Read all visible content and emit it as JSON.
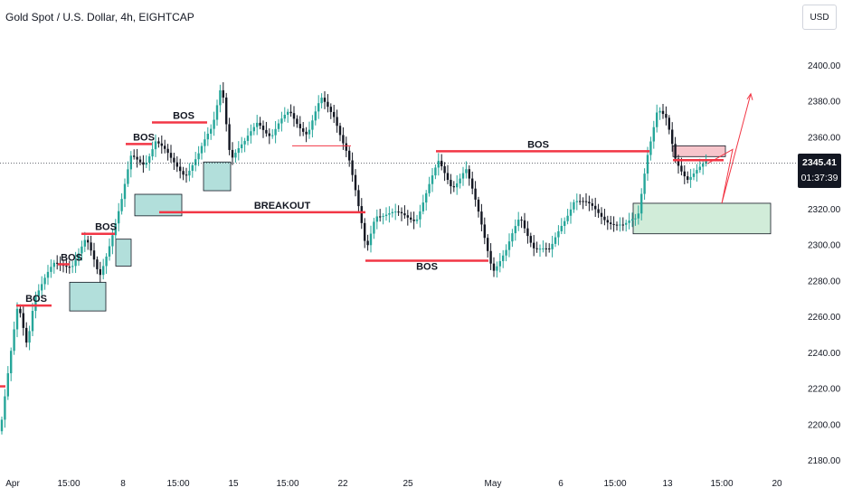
{
  "title": "Gold Spot / U.S. Dollar, 4h, EIGHTCAP",
  "currency_button": "USD",
  "last_price": "2345.41",
  "countdown": "01:37:39",
  "colors": {
    "up": "#26a69a",
    "down": "#131722",
    "level": "#f23645",
    "zone_green": "#d1ecd9",
    "zone_teal": "#b2dfdb",
    "zone_red": "#f7c5cb"
  },
  "chart_data": {
    "type": "candlestick",
    "ylim": [
      2180,
      2400
    ],
    "yticks": [
      2180,
      2200,
      2220,
      2240,
      2260,
      2280,
      2300,
      2320,
      2340,
      2360,
      2380,
      2400
    ],
    "ytick_labels": [
      "2180.00",
      "2200.00",
      "2220.00",
      "2240.00",
      "2260.00",
      "2280.00",
      "2300.00",
      "2320.00",
      "2340.00",
      "2360.00",
      "2380.00",
      "2400.00"
    ],
    "xtick_labels": [
      "Apr",
      "15:00",
      "8",
      "15:00",
      "15",
      "15:00",
      "22",
      "25",
      "May",
      "6",
      "15:00",
      "13",
      "15:00",
      "20"
    ],
    "annotations": [
      {
        "label": "BOS",
        "price": 2266
      },
      {
        "label": "BOS",
        "price": 2289
      },
      {
        "label": "BOS",
        "price": 2306
      },
      {
        "label": "BOS",
        "price": 2356
      },
      {
        "label": "BOS",
        "price": 2368
      },
      {
        "label": "BREAKOUT",
        "price": 2318
      },
      {
        "label": "BOS",
        "price": 2291
      },
      {
        "label": "BOS",
        "price": 2352
      }
    ],
    "current_price": 2345.41,
    "projection": [
      2345,
      2353,
      2323,
      2384
    ]
  }
}
